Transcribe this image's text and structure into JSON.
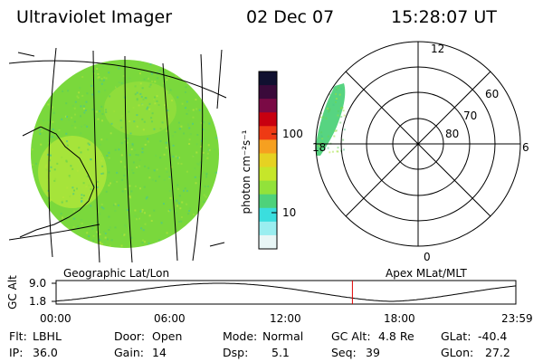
{
  "header": {
    "instrument": "Ultraviolet Imager",
    "date": "02 Dec 07",
    "time": "15:28:07 UT"
  },
  "colorbar": {
    "unit_label": "photon cm⁻²s⁻¹",
    "tick_labels": [
      "100",
      "10"
    ],
    "colors": [
      "#101030",
      "#3a0a3a",
      "#7a0a45",
      "#c80010",
      "#ee3a14",
      "#f6a020",
      "#e6d222",
      "#c6e62a",
      "#92e23a",
      "#4ed27a",
      "#3adede",
      "#9aeef0",
      "#e8f6f6"
    ]
  },
  "geo_panel": {
    "label": "Geographic Lat/Lon",
    "disk_color": "#7ad83c",
    "bright_color": "#b6e83a"
  },
  "polar_panel": {
    "label": "Apex MLat/MLT",
    "lat_labels": [
      "80",
      "70",
      "60"
    ],
    "mlt_labels": [
      "12",
      "18",
      "6",
      "0"
    ]
  },
  "altitude_plot": {
    "ylabel": "GC Alt",
    "yticks": [
      "9.0",
      "1.8"
    ],
    "xticks": [
      "00:00",
      "06:00",
      "12:00",
      "18:00",
      "23:59"
    ],
    "current_time_marker_hours": 15.47,
    "marker_color": "#e00000"
  },
  "info": {
    "row1": [
      {
        "label": "Flt:",
        "value": "LBHL"
      },
      {
        "label": "Door:",
        "value": "Open"
      },
      {
        "label": "Mode:",
        "value": "Normal"
      },
      {
        "label": "GC Alt:",
        "value": "4.8 Re"
      },
      {
        "label": "GLat:",
        "value": "-40.4"
      }
    ],
    "row2": [
      {
        "label": "IP:",
        "value": "36.0"
      },
      {
        "label": "Gain:",
        "value": "14"
      },
      {
        "label": "Dsp:",
        "value": "5.1"
      },
      {
        "label": "Seq:",
        "value": "39"
      },
      {
        "label": "GLon:",
        "value": "27.2"
      }
    ]
  }
}
